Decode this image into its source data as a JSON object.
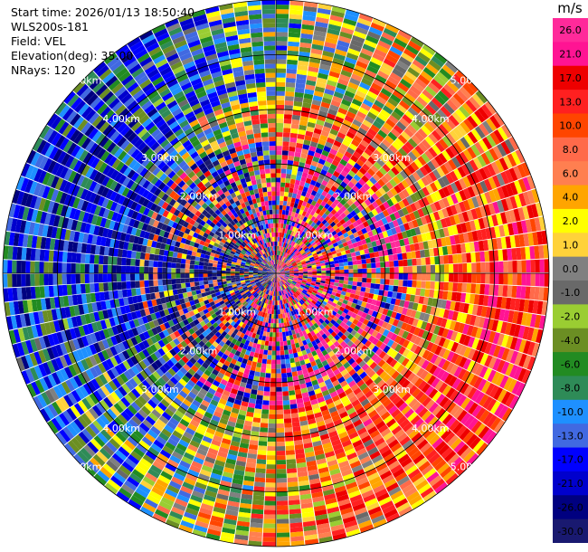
{
  "header": {
    "start_time": "Start time: 2026/01/13 18:50:40",
    "instrument": "WLS200s-181",
    "field": "Field: VEL",
    "elevation": "Elevation(deg): 35.00",
    "nrays": "NRays: 120"
  },
  "colorbar": {
    "unit": "m/s",
    "levels": [
      {
        "label": "26.0",
        "color": "#ff2a9a"
      },
      {
        "label": "21.0",
        "color": "#ff1493"
      },
      {
        "label": "17.0",
        "color": "#ee0000"
      },
      {
        "label": "13.0",
        "color": "#ff2020"
      },
      {
        "label": "10.0",
        "color": "#ff4500"
      },
      {
        "label": "8.0",
        "color": "#ff6a4a"
      },
      {
        "label": "6.0",
        "color": "#ff7f50"
      },
      {
        "label": "4.0",
        "color": "#ffa500"
      },
      {
        "label": "2.0",
        "color": "#ffff00"
      },
      {
        "label": "1.0",
        "color": "#ffd23a"
      },
      {
        "label": "0.0",
        "color": "#808080"
      },
      {
        "label": "-1.0",
        "color": "#696969"
      },
      {
        "label": "-2.0",
        "color": "#9acd32"
      },
      {
        "label": "-4.0",
        "color": "#6b8e23"
      },
      {
        "label": "-6.0",
        "color": "#228b22"
      },
      {
        "label": "-8.0",
        "color": "#2e8b57"
      },
      {
        "label": "-10.0",
        "color": "#1e90ff"
      },
      {
        "label": "-13.0",
        "color": "#4169e1"
      },
      {
        "label": "-17.0",
        "color": "#0000ff"
      },
      {
        "label": "-21.0",
        "color": "#0000cd"
      },
      {
        "label": "-26.0",
        "color": "#000080"
      },
      {
        "label": "-30.0",
        "color": "#191970"
      }
    ]
  },
  "chart_data": {
    "type": "heatmap",
    "projection": "polar-ppi",
    "field": "VEL",
    "n_rays": 120,
    "range_rings_km": [
      1.0,
      2.0,
      3.0,
      4.0,
      5.0
    ],
    "ring_labels": [
      "1.00km",
      "2.00km",
      "3.00km",
      "4.00km",
      "5.00km"
    ],
    "max_range_km": 5.0,
    "value_range": [
      -30.0,
      30.0
    ]
  }
}
